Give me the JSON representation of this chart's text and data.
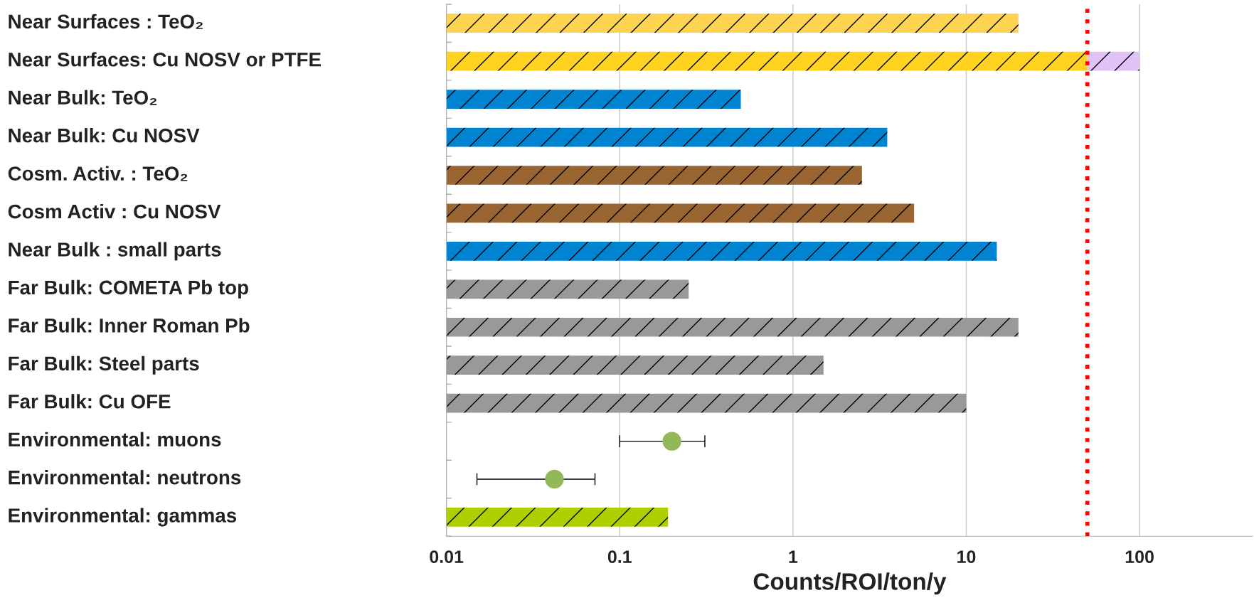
{
  "chart_data": {
    "type": "bar",
    "orientation": "horizontal",
    "stacked": true,
    "log": "x",
    "xlabel": "Counts/ROI/ton/y",
    "categories": [
      "Near Surfaces : TeO₂",
      "Near Surfaces: Cu NOSV or PTFE",
      "Near Bulk: TeO₂",
      "Near Bulk: Cu NOSV",
      "Cosm. Activ. : TeO₂",
      "Cosm Activ : Cu NOSV",
      "Near Bulk : small parts",
      "Far Bulk: COMETA Pb top",
      "Far Bulk: Inner Roman Pb",
      "Far Bulk: Steel parts",
      "Far Bulk: Cu OFE",
      "Environmental: muons",
      "Environmental: neutrons",
      "Environmental: gammas"
    ],
    "series": [
      {
        "colors": [
          "#fdd34f",
          "#ffd320",
          "#0084d1",
          "#0084d1",
          "#996633",
          "#996633",
          "#0084d1",
          "#999999",
          "#999999",
          "#999999",
          "#999999",
          null,
          null,
          "#aecf00"
        ],
        "values": [
          20,
          50,
          0.5,
          3.5,
          2.5,
          5,
          15,
          0.25,
          20,
          1.5,
          10,
          null,
          null,
          0.19
        ]
      },
      {
        "color": "#e0c2f8",
        "values": [
          null,
          50,
          null,
          null,
          null,
          null,
          null,
          null,
          null,
          null,
          null,
          null,
          null,
          null
        ]
      },
      {
        "type": "scatter",
        "color": "#92b85a",
        "marker": "circle",
        "values": [
          null,
          null,
          null,
          null,
          null,
          null,
          null,
          null,
          null,
          null,
          null,
          0.2,
          0.042,
          null
        ],
        "errors": [
          null,
          null,
          null,
          null,
          null,
          null,
          null,
          null,
          null,
          null,
          null,
          [
            0.1,
            0.31
          ],
          [
            0.015,
            0.072
          ],
          null
        ]
      }
    ],
    "xlim": [
      0.01,
      450
    ],
    "xticks": [
      0.01,
      0.1,
      1,
      10,
      100
    ],
    "grid": "x",
    "ref_lines": [
      {
        "axis": "x",
        "value": 50,
        "color": "#ff0000",
        "line_style": "dotted"
      }
    ]
  }
}
